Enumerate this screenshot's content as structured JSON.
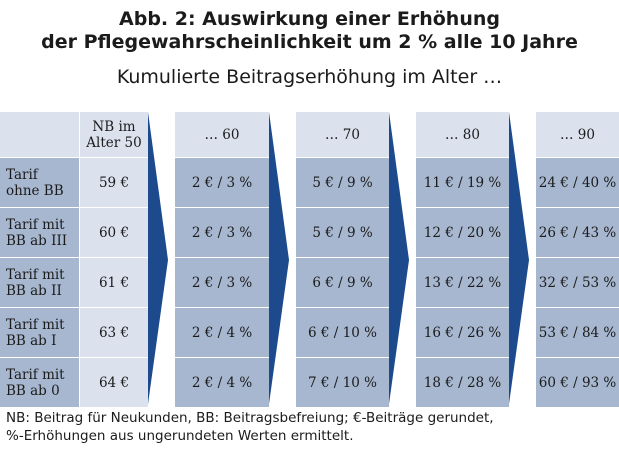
{
  "title_line1": "Abb. 2: Auswirkung einer Erhöhung",
  "title_line2": "der Pflegewahrscheinlichkeit um 2 % alle 10 Jahre",
  "subtitle": "Kumulierte Beitragserhöhung im Alter …",
  "table": {
    "header_nb_line1": "NB im",
    "header_nb_line2": "Alter 50",
    "age_headers": [
      "… 60",
      "… 70",
      "… 80",
      "… 90"
    ],
    "rows": [
      {
        "label_line1": "Tarif",
        "label_line2": "ohne BB",
        "nb": "59 €",
        "values": [
          "2 € / 3 %",
          "5 € / 9 %",
          "11 € / 19 %",
          "24 € / 40 %"
        ]
      },
      {
        "label_line1": "Tarif mit",
        "label_line2": "BB ab III",
        "nb": "60 €",
        "values": [
          "2 € / 3 %",
          "5 € / 9 %",
          "12 € / 20 %",
          "26 € / 43 %"
        ]
      },
      {
        "label_line1": "Tarif mit",
        "label_line2": "BB ab II",
        "nb": "61 €",
        "values": [
          "2 € / 3 %",
          "6 € / 9 %",
          "13 € / 22 %",
          "32 € / 53 %"
        ]
      },
      {
        "label_line1": "Tarif mit",
        "label_line2": "BB ab I",
        "nb": "63 €",
        "values": [
          "2 € / 4 %",
          "6 € / 10 %",
          "16 € / 26 %",
          "53 € / 84 %"
        ]
      },
      {
        "label_line1": "Tarif mit",
        "label_line2": "BB ab 0",
        "nb": "64 €",
        "values": [
          "2 € / 4 %",
          "7 € / 10 %",
          "18 € / 28 %",
          "60 € / 93 %"
        ]
      }
    ]
  },
  "footer_line1": "NB: Beitrag für Neukunden, BB: Beitragsbefreiung; €-Beiträge gerundet,",
  "footer_line2": "%-Erhöhungen aus ungerundeten Werten ermittelt.",
  "colors": {
    "header_bg": "#dbe2ee",
    "row_dark": "#a7b7d0",
    "row_light": "#dbe2ee",
    "arrow": "#1c4a8c"
  }
}
